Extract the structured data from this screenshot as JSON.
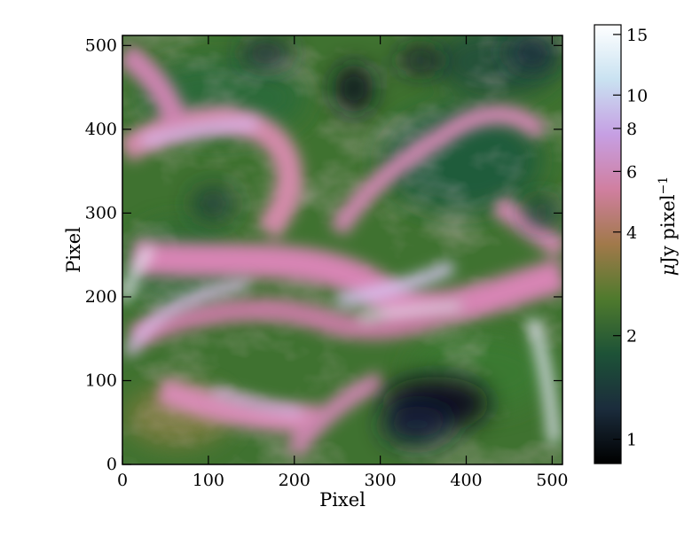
{
  "chart_data": {
    "type": "heatmap",
    "title": "",
    "xlabel": "Pixel",
    "ylabel": "Pixel",
    "xlim": [
      0,
      512
    ],
    "ylim": [
      0,
      512
    ],
    "xticks": [
      0,
      100,
      200,
      300,
      400,
      500
    ],
    "yticks": [
      0,
      100,
      200,
      300,
      400,
      500
    ],
    "colorbar": {
      "label_greek": "μ",
      "label_main": "Jy pixel",
      "label_exp": "−1",
      "scale": "log",
      "range": [
        0.85,
        16
      ],
      "ticks": [
        1,
        2,
        4,
        6,
        8,
        10,
        15
      ],
      "colormap": "cubehelix",
      "colors": [
        "#000000",
        "#1b2c3c",
        "#1d5237",
        "#4f7a2d",
        "#a1794a",
        "#d07fa0",
        "#c69fe3",
        "#c9e2f1",
        "#ffffff"
      ]
    },
    "features": [
      {
        "name": "dark-pocket-lower-right",
        "x": 370,
        "y": 80,
        "value": 0.9
      },
      {
        "name": "dark-pocket-top-center",
        "x": 265,
        "y": 435,
        "value": 1.0
      },
      {
        "name": "dark-pocket-top-right",
        "x": 345,
        "y": 470,
        "value": 1.1
      },
      {
        "name": "bright-filament-center",
        "x": 310,
        "y": 190,
        "value": 11
      },
      {
        "name": "bright-filament-upper-left",
        "x": 80,
        "y": 385,
        "value": 10
      },
      {
        "name": "bright-filament-left-edge",
        "x": 10,
        "y": 150,
        "value": 12
      },
      {
        "name": "bright-filament-right-edge",
        "x": 505,
        "y": 120,
        "value": 12
      },
      {
        "name": "bright-filament-mid-right",
        "x": 470,
        "y": 250,
        "value": 9
      }
    ]
  }
}
